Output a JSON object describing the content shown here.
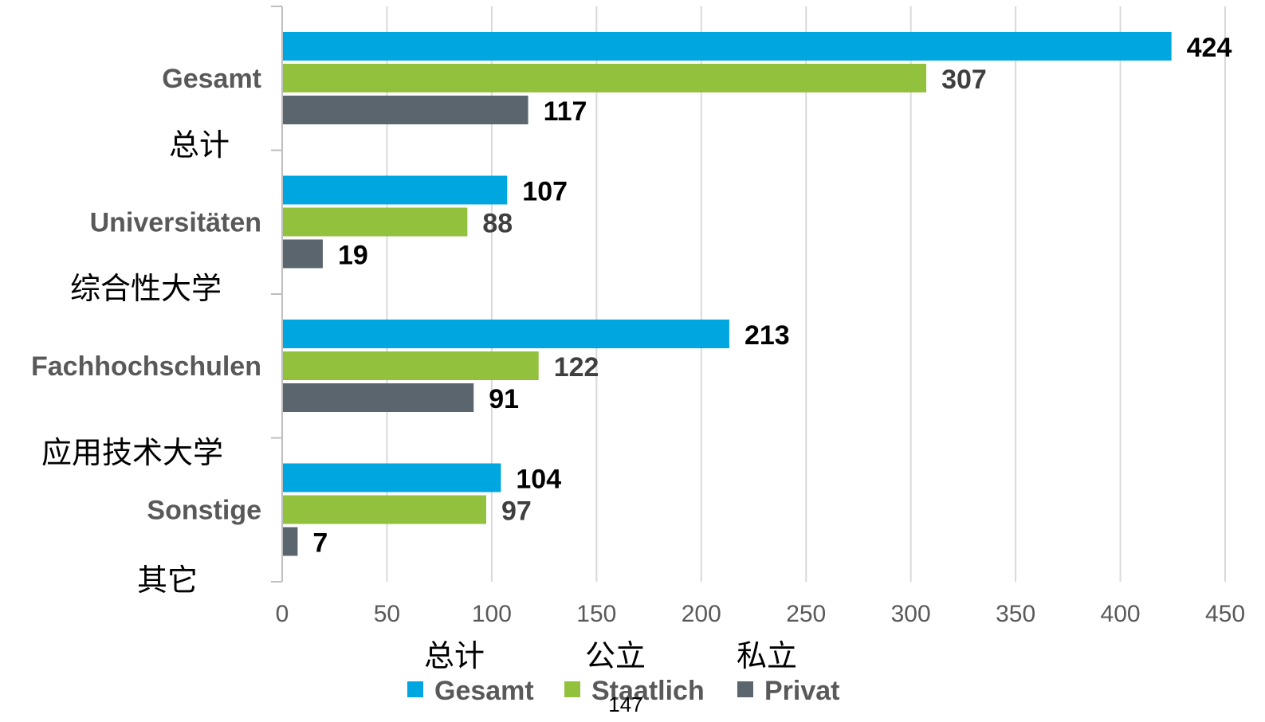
{
  "chart_data": {
    "type": "bar",
    "orientation": "horizontal",
    "categories": [
      {
        "label": "Gesamt",
        "label_zh": "总计"
      },
      {
        "label": "Universitäten",
        "label_zh": "综合性大学"
      },
      {
        "label": "Fachhochschulen",
        "label_zh": "应用技术大学"
      },
      {
        "label": "Sonstige",
        "label_zh": "其它"
      }
    ],
    "series": [
      {
        "name": "Gesamt",
        "name_zh": "总计",
        "color": "#00A6E0",
        "values": [
          424,
          107,
          213,
          104
        ]
      },
      {
        "name": "Staatlich",
        "name_zh": "公立",
        "color": "#92C13E",
        "values": [
          307,
          88,
          122,
          97
        ]
      },
      {
        "name": "Privat",
        "name_zh": "私立",
        "color": "#5B656E",
        "values": [
          117,
          19,
          91,
          7
        ]
      }
    ],
    "xlim": [
      0,
      450
    ],
    "xticks": [
      "0",
      "50",
      "100",
      "150",
      "200",
      "250",
      "300",
      "350",
      "400",
      "450"
    ],
    "grid": true,
    "legend_position": "bottom",
    "label_colors": [
      "#000000",
      "#3F3F3F",
      "#000000"
    ]
  },
  "page_number": "147"
}
